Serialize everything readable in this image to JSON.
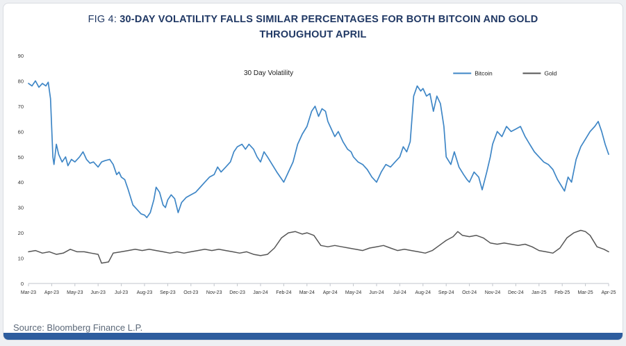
{
  "title": {
    "prefix": "FIG 4: ",
    "main": "30-DAY VOLATILITY FALLS SIMILAR PERCENTAGES FOR BOTH BITCOIN AND GOLD THROUGHOUT APRIL"
  },
  "source": "Source: Bloomberg Finance L.P.",
  "colors": {
    "bitcoin": "#3e86c6",
    "gold": "#555555",
    "title_navy": "#203864",
    "bottom_bar": "#2e5d9e"
  },
  "chart_data": {
    "type": "line",
    "title": "30 Day Volatility",
    "legend_position": "top-right",
    "grid": false,
    "ylim": [
      0,
      90
    ],
    "y_ticks": [
      0,
      10,
      20,
      30,
      40,
      50,
      60,
      70,
      80,
      90
    ],
    "x_tick_labels": [
      "Mar-23",
      "Apr-23",
      "May-23",
      "Jun-23",
      "Jul-23",
      "Aug-23",
      "Sep-23",
      "Oct-23",
      "Nov-23",
      "Dec-23",
      "Jan-24",
      "Feb-24",
      "Mar-24",
      "Apr-24",
      "May-24",
      "Jun-24",
      "Jul-24",
      "Aug-24",
      "Sep-24",
      "Oct-24",
      "Nov-24",
      "Dec-24",
      "Jan-25",
      "Feb-25",
      "Mar-25",
      "Apr-25"
    ],
    "x_unit": "month index from Mar-23",
    "series": [
      {
        "name": "Bitcoin",
        "color": "#3e86c6",
        "points": [
          [
            0,
            79
          ],
          [
            0.15,
            78
          ],
          [
            0.3,
            80
          ],
          [
            0.45,
            77.5
          ],
          [
            0.6,
            79
          ],
          [
            0.75,
            78
          ],
          [
            0.85,
            79.5
          ],
          [
            0.95,
            73
          ],
          [
            1.05,
            50
          ],
          [
            1.1,
            47
          ],
          [
            1.2,
            55
          ],
          [
            1.3,
            51
          ],
          [
            1.45,
            48
          ],
          [
            1.6,
            50
          ],
          [
            1.7,
            46.5
          ],
          [
            1.85,
            49
          ],
          [
            2,
            48
          ],
          [
            2.2,
            50
          ],
          [
            2.35,
            52
          ],
          [
            2.5,
            49
          ],
          [
            2.65,
            47.5
          ],
          [
            2.8,
            48
          ],
          [
            3,
            46
          ],
          [
            3.15,
            48
          ],
          [
            3.3,
            48.5
          ],
          [
            3.5,
            49
          ],
          [
            3.65,
            47
          ],
          [
            3.8,
            43
          ],
          [
            3.9,
            44
          ],
          [
            4,
            42
          ],
          [
            4.15,
            41
          ],
          [
            4.3,
            37
          ],
          [
            4.5,
            31
          ],
          [
            4.7,
            29
          ],
          [
            4.85,
            27.5
          ],
          [
            5,
            27
          ],
          [
            5.1,
            26
          ],
          [
            5.25,
            28
          ],
          [
            5.4,
            33
          ],
          [
            5.5,
            38
          ],
          [
            5.65,
            36
          ],
          [
            5.8,
            31
          ],
          [
            5.9,
            30
          ],
          [
            6,
            33
          ],
          [
            6.15,
            35
          ],
          [
            6.3,
            33.5
          ],
          [
            6.45,
            28
          ],
          [
            6.6,
            32
          ],
          [
            6.8,
            34
          ],
          [
            7,
            35
          ],
          [
            7.2,
            36
          ],
          [
            7.4,
            38
          ],
          [
            7.6,
            40
          ],
          [
            7.8,
            42
          ],
          [
            8,
            43
          ],
          [
            8.15,
            46
          ],
          [
            8.3,
            44
          ],
          [
            8.5,
            46
          ],
          [
            8.7,
            48
          ],
          [
            8.85,
            52
          ],
          [
            9,
            54
          ],
          [
            9.2,
            55
          ],
          [
            9.35,
            53
          ],
          [
            9.5,
            55
          ],
          [
            9.7,
            53
          ],
          [
            9.85,
            50
          ],
          [
            10,
            48
          ],
          [
            10.15,
            52
          ],
          [
            10.3,
            50
          ],
          [
            10.5,
            47
          ],
          [
            10.7,
            44
          ],
          [
            10.85,
            42
          ],
          [
            11,
            40
          ],
          [
            11.2,
            44
          ],
          [
            11.4,
            48
          ],
          [
            11.6,
            55
          ],
          [
            11.8,
            59
          ],
          [
            12,
            62
          ],
          [
            12.2,
            68
          ],
          [
            12.35,
            70
          ],
          [
            12.5,
            66
          ],
          [
            12.65,
            69
          ],
          [
            12.8,
            68
          ],
          [
            12.9,
            64
          ],
          [
            13,
            62
          ],
          [
            13.2,
            58
          ],
          [
            13.35,
            60
          ],
          [
            13.55,
            56
          ],
          [
            13.75,
            53
          ],
          [
            13.9,
            52
          ],
          [
            14,
            50
          ],
          [
            14.2,
            48
          ],
          [
            14.4,
            47
          ],
          [
            14.6,
            45
          ],
          [
            14.8,
            42
          ],
          [
            15,
            40
          ],
          [
            15.2,
            44
          ],
          [
            15.4,
            47
          ],
          [
            15.6,
            46
          ],
          [
            15.8,
            48
          ],
          [
            16,
            50
          ],
          [
            16.15,
            54
          ],
          [
            16.3,
            52
          ],
          [
            16.45,
            56
          ],
          [
            16.6,
            74
          ],
          [
            16.75,
            78
          ],
          [
            16.9,
            76
          ],
          [
            17,
            77
          ],
          [
            17.15,
            74
          ],
          [
            17.3,
            75
          ],
          [
            17.45,
            68
          ],
          [
            17.6,
            74
          ],
          [
            17.75,
            71
          ],
          [
            17.9,
            62
          ],
          [
            18,
            50
          ],
          [
            18.2,
            47
          ],
          [
            18.35,
            52
          ],
          [
            18.55,
            46
          ],
          [
            18.75,
            43
          ],
          [
            18.9,
            41
          ],
          [
            19,
            40
          ],
          [
            19.2,
            44
          ],
          [
            19.4,
            42
          ],
          [
            19.55,
            37
          ],
          [
            19.75,
            44
          ],
          [
            19.9,
            50
          ],
          [
            20,
            55
          ],
          [
            20.2,
            60
          ],
          [
            20.4,
            58
          ],
          [
            20.6,
            62
          ],
          [
            20.8,
            60
          ],
          [
            21,
            61
          ],
          [
            21.2,
            62
          ],
          [
            21.4,
            58
          ],
          [
            21.6,
            55
          ],
          [
            21.8,
            52
          ],
          [
            22,
            50
          ],
          [
            22.2,
            48
          ],
          [
            22.4,
            47
          ],
          [
            22.6,
            45
          ],
          [
            22.8,
            41
          ],
          [
            23,
            38
          ],
          [
            23.1,
            36.5
          ],
          [
            23.25,
            42
          ],
          [
            23.4,
            40
          ],
          [
            23.6,
            49
          ],
          [
            23.8,
            54
          ],
          [
            24,
            57
          ],
          [
            24.2,
            60
          ],
          [
            24.4,
            62
          ],
          [
            24.55,
            64
          ],
          [
            24.7,
            60
          ],
          [
            24.85,
            55
          ],
          [
            25,
            51
          ]
        ]
      },
      {
        "name": "Gold",
        "color": "#555555",
        "points": [
          [
            0,
            12.5
          ],
          [
            0.3,
            13
          ],
          [
            0.6,
            12
          ],
          [
            0.9,
            12.5
          ],
          [
            1.2,
            11.5
          ],
          [
            1.5,
            12
          ],
          [
            1.8,
            13.5
          ],
          [
            2.1,
            12.5
          ],
          [
            2.4,
            12.5
          ],
          [
            2.7,
            12
          ],
          [
            3,
            11.5
          ],
          [
            3.15,
            8
          ],
          [
            3.45,
            8.5
          ],
          [
            3.65,
            12
          ],
          [
            4,
            12.5
          ],
          [
            4.3,
            13
          ],
          [
            4.6,
            13.5
          ],
          [
            4.9,
            13
          ],
          [
            5.2,
            13.5
          ],
          [
            5.5,
            13
          ],
          [
            5.8,
            12.5
          ],
          [
            6.1,
            12
          ],
          [
            6.4,
            12.5
          ],
          [
            6.7,
            12
          ],
          [
            7,
            12.5
          ],
          [
            7.3,
            13
          ],
          [
            7.6,
            13.5
          ],
          [
            7.9,
            13
          ],
          [
            8.2,
            13.5
          ],
          [
            8.5,
            13
          ],
          [
            8.8,
            12.5
          ],
          [
            9.1,
            12
          ],
          [
            9.4,
            12.5
          ],
          [
            9.7,
            11.5
          ],
          [
            10,
            11
          ],
          [
            10.3,
            11.5
          ],
          [
            10.6,
            14
          ],
          [
            10.9,
            18
          ],
          [
            11.2,
            20
          ],
          [
            11.5,
            20.5
          ],
          [
            11.8,
            19.5
          ],
          [
            12,
            20
          ],
          [
            12.3,
            19
          ],
          [
            12.6,
            15
          ],
          [
            12.9,
            14.5
          ],
          [
            13.2,
            15
          ],
          [
            13.5,
            14.5
          ],
          [
            13.8,
            14
          ],
          [
            14.1,
            13.5
          ],
          [
            14.4,
            13
          ],
          [
            14.7,
            14
          ],
          [
            15,
            14.5
          ],
          [
            15.3,
            15
          ],
          [
            15.6,
            14
          ],
          [
            15.9,
            13
          ],
          [
            16.2,
            13.5
          ],
          [
            16.5,
            13
          ],
          [
            16.8,
            12.5
          ],
          [
            17.1,
            12
          ],
          [
            17.4,
            13
          ],
          [
            17.7,
            15
          ],
          [
            18,
            17
          ],
          [
            18.3,
            18.5
          ],
          [
            18.5,
            20.5
          ],
          [
            18.7,
            19
          ],
          [
            19,
            18.5
          ],
          [
            19.3,
            19
          ],
          [
            19.6,
            18
          ],
          [
            19.9,
            16
          ],
          [
            20.2,
            15.5
          ],
          [
            20.5,
            16
          ],
          [
            20.8,
            15.5
          ],
          [
            21.1,
            15
          ],
          [
            21.4,
            15.5
          ],
          [
            21.7,
            14.5
          ],
          [
            22,
            13
          ],
          [
            22.3,
            12.5
          ],
          [
            22.6,
            12
          ],
          [
            22.9,
            14
          ],
          [
            23.2,
            18
          ],
          [
            23.5,
            20
          ],
          [
            23.8,
            21
          ],
          [
            24,
            20.5
          ],
          [
            24.2,
            19
          ],
          [
            24.5,
            14.5
          ],
          [
            24.8,
            13.5
          ],
          [
            25,
            12.5
          ]
        ]
      }
    ]
  }
}
